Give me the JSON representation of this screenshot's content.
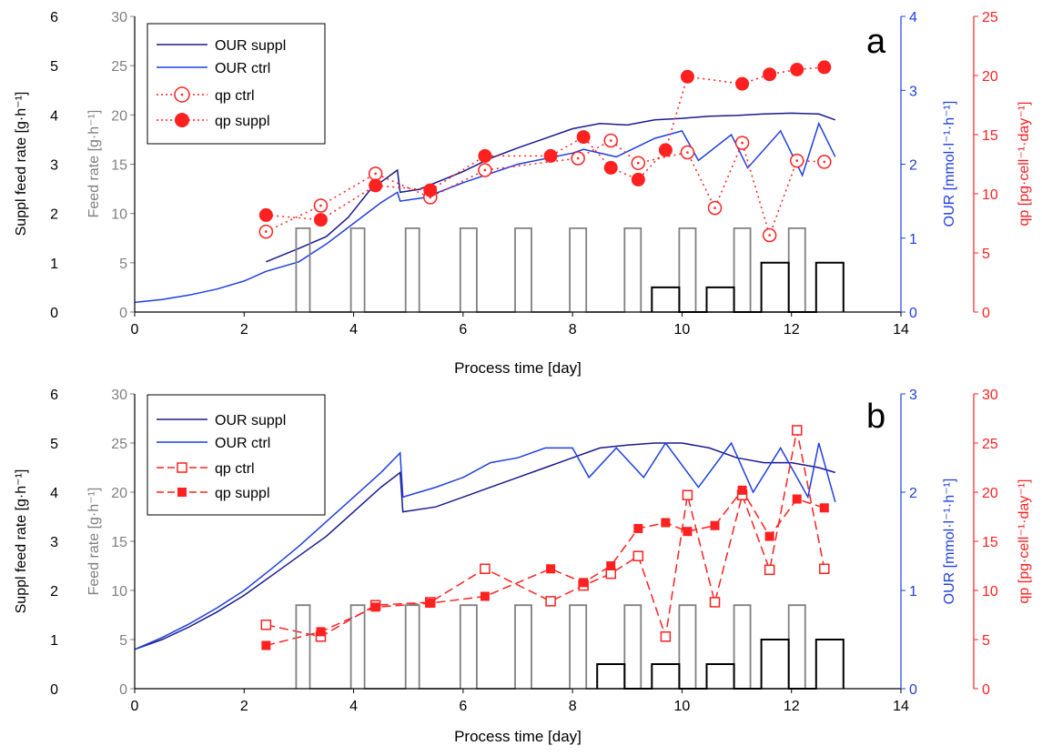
{
  "colors": {
    "our_suppl": "#1a1a8c",
    "our_ctrl": "#1f3fe0",
    "qp": "#ff2020",
    "feed_gray": "#808080",
    "suppl_black": "#000000",
    "axis_blue": "#1f3fe0",
    "axis_red": "#ff2020"
  },
  "chart_data": [
    {
      "type": "line",
      "panel_label": "a",
      "xlabel": "Process time [day]",
      "xlim": [
        0,
        14
      ],
      "x_ticks": [
        "0",
        "2",
        "4",
        "6",
        "8",
        "10",
        "12",
        "14"
      ],
      "axes": {
        "suppl": {
          "label": "Suppl feed rate [g·h⁻¹]",
          "lim": [
            0,
            6
          ],
          "ticks": [
            "0",
            "1",
            "2",
            "3",
            "4",
            "5",
            "6"
          ]
        },
        "feed": {
          "label": "Feed rate [g·h⁻¹]",
          "lim": [
            0,
            30
          ],
          "ticks": [
            "0",
            "5",
            "10",
            "15",
            "20",
            "25",
            "30"
          ]
        },
        "our": {
          "label": "OUR [mmol·l⁻¹·h⁻¹]",
          "lim": [
            0,
            4
          ],
          "ticks": [
            "0",
            "1",
            "2",
            "3",
            "4"
          ]
        },
        "qp": {
          "label": "qp [pg·cell⁻¹·day⁻¹]",
          "lim": [
            0,
            25
          ],
          "ticks": [
            "0",
            "5",
            "10",
            "15",
            "20",
            "25"
          ]
        }
      },
      "legend": {
        "placement": "top-left",
        "entries": [
          "OUR suppl",
          "OUR ctrl",
          "qp ctrl",
          "qp suppl"
        ]
      },
      "series": [
        {
          "name": "OUR suppl",
          "axis": "our",
          "style": "line",
          "x": [
            2.4,
            3.0,
            3.5,
            3.9,
            4.3,
            4.8,
            4.85,
            5.2,
            6.0,
            6.5,
            7.0,
            7.5,
            8.0,
            8.5,
            9.0,
            9.5,
            10.0,
            10.5,
            11.0,
            11.5,
            12.0,
            12.5,
            12.8
          ],
          "y": [
            0.68,
            0.86,
            1.02,
            1.28,
            1.65,
            1.92,
            1.62,
            1.66,
            1.9,
            2.08,
            2.22,
            2.35,
            2.48,
            2.55,
            2.53,
            2.6,
            2.62,
            2.65,
            2.66,
            2.68,
            2.69,
            2.68,
            2.6
          ]
        },
        {
          "name": "OUR ctrl",
          "axis": "our",
          "style": "line",
          "x": [
            0,
            0.5,
            1.0,
            1.5,
            2.0,
            2.4,
            3.0,
            3.5,
            4.0,
            4.5,
            4.8,
            4.85,
            5.3,
            6.0,
            7.0,
            8.0,
            8.2,
            8.8,
            9.5,
            10.0,
            10.3,
            10.9,
            11.2,
            11.8,
            12.2,
            12.5,
            12.8
          ],
          "y": [
            0.13,
            0.17,
            0.23,
            0.31,
            0.42,
            0.55,
            0.68,
            0.92,
            1.2,
            1.48,
            1.62,
            1.5,
            1.55,
            1.75,
            2.0,
            2.15,
            2.2,
            2.1,
            2.35,
            2.45,
            2.05,
            2.4,
            1.95,
            2.45,
            1.85,
            2.55,
            2.1
          ]
        },
        {
          "name": "qp ctrl",
          "axis": "qp",
          "style": "dotted-open-circle",
          "x": [
            2.4,
            3.4,
            4.4,
            5.4,
            6.4,
            8.1,
            8.7,
            9.2,
            10.1,
            10.6,
            11.1,
            11.6,
            12.1,
            12.6
          ],
          "y": [
            6.8,
            9.0,
            11.7,
            9.7,
            12.0,
            13.0,
            14.5,
            12.6,
            13.5,
            8.8,
            14.3,
            6.5,
            12.8,
            12.7
          ]
        },
        {
          "name": "qp suppl",
          "axis": "qp",
          "style": "dotted-filled-circle",
          "x": [
            2.4,
            3.4,
            4.4,
            5.4,
            6.4,
            7.6,
            8.2,
            8.7,
            9.2,
            9.7,
            10.1,
            11.1,
            11.6,
            12.1,
            12.6
          ],
          "y": [
            8.2,
            7.8,
            10.7,
            10.3,
            13.2,
            13.2,
            14.8,
            12.2,
            11.2,
            13.7,
            19.9,
            19.3,
            20.1,
            20.5,
            20.7
          ]
        },
        {
          "name": "Feed rate",
          "axis": "feed",
          "style": "step-gray",
          "x": [
            2.95,
            2.95,
            3.2,
            3.2,
            3.95,
            3.95,
            4.2,
            4.2,
            4.95,
            4.95,
            5.2,
            5.2,
            5.95,
            5.95,
            6.25,
            6.25,
            6.95,
            6.95,
            7.25,
            7.25,
            7.95,
            7.95,
            8.25,
            8.25,
            8.95,
            8.95,
            9.25,
            9.25,
            9.95,
            9.95,
            10.25,
            10.25,
            10.95,
            10.95,
            11.25,
            11.25,
            11.95,
            11.95,
            12.25,
            12.25
          ],
          "y": [
            0,
            8.5,
            8.5,
            0,
            0,
            8.5,
            8.5,
            0,
            0,
            8.5,
            8.5,
            0,
            0,
            8.5,
            8.5,
            0,
            0,
            8.5,
            8.5,
            0,
            0,
            8.5,
            8.5,
            0,
            0,
            8.5,
            8.5,
            0,
            0,
            8.5,
            8.5,
            0,
            0,
            8.5,
            8.5,
            0,
            0,
            8.5,
            8.5,
            0
          ]
        },
        {
          "name": "Suppl feed rate",
          "axis": "suppl",
          "style": "step-black",
          "x": [
            9.45,
            9.45,
            9.95,
            9.95,
            10.45,
            10.45,
            10.95,
            10.95,
            11.45,
            11.45,
            11.95,
            11.95,
            12.45,
            12.45,
            12.95,
            12.95
          ],
          "y": [
            0,
            0.5,
            0.5,
            0,
            0,
            0.5,
            0.5,
            0,
            0,
            1.0,
            1.0,
            0,
            0,
            1.0,
            1.0,
            0
          ]
        }
      ]
    },
    {
      "type": "line",
      "panel_label": "b",
      "xlabel": "Process time [day]",
      "xlim": [
        0,
        14
      ],
      "x_ticks": [
        "0",
        "2",
        "4",
        "6",
        "8",
        "10",
        "12",
        "14"
      ],
      "axes": {
        "suppl": {
          "label": "Suppl feed rate [g·h⁻¹]",
          "lim": [
            0,
            6
          ],
          "ticks": [
            "0",
            "1",
            "2",
            "3",
            "4",
            "5",
            "6"
          ]
        },
        "feed": {
          "label": "Feed rate [g·h⁻¹]",
          "lim": [
            0,
            30
          ],
          "ticks": [
            "0",
            "5",
            "10",
            "15",
            "20",
            "25",
            "30"
          ]
        },
        "our": {
          "label": "OUR [mmol·l⁻¹·h⁻¹]",
          "lim": [
            0,
            3
          ],
          "ticks": [
            "0",
            "1",
            "2",
            "3"
          ]
        },
        "qp": {
          "label": "qp [pg·cell⁻¹·day⁻¹]",
          "lim": [
            0,
            30
          ],
          "ticks": [
            "0",
            "5",
            "10",
            "15",
            "20",
            "25",
            "30"
          ]
        }
      },
      "legend": {
        "placement": "top-left",
        "entries": [
          "OUR suppl",
          "OUR ctrl",
          "qp ctrl",
          "qp suppl"
        ]
      },
      "series": [
        {
          "name": "OUR suppl",
          "axis": "our",
          "style": "line",
          "x": [
            0,
            0.5,
            1.0,
            1.5,
            2.0,
            2.5,
            3.0,
            3.5,
            4.0,
            4.5,
            4.85,
            4.9,
            5.5,
            6.0,
            6.5,
            7.0,
            7.5,
            8.0,
            8.5,
            9.0,
            9.5,
            10.0,
            10.5,
            11.0,
            11.5,
            12.0,
            12.5,
            12.8
          ],
          "y": [
            0.4,
            0.5,
            0.63,
            0.78,
            0.95,
            1.15,
            1.35,
            1.55,
            1.8,
            2.05,
            2.2,
            1.8,
            1.85,
            1.95,
            2.05,
            2.15,
            2.25,
            2.35,
            2.45,
            2.48,
            2.5,
            2.5,
            2.45,
            2.35,
            2.3,
            2.3,
            2.25,
            2.2
          ]
        },
        {
          "name": "OUR ctrl",
          "axis": "our",
          "style": "line",
          "x": [
            0,
            0.5,
            1.0,
            1.5,
            2.0,
            2.5,
            3.0,
            3.5,
            4.0,
            4.5,
            4.85,
            4.9,
            5.5,
            6.0,
            6.5,
            7.0,
            7.5,
            8.0,
            8.3,
            8.8,
            9.3,
            9.7,
            10.3,
            10.9,
            11.3,
            11.8,
            12.3,
            12.5,
            12.8
          ],
          "y": [
            0.4,
            0.52,
            0.66,
            0.82,
            1.0,
            1.22,
            1.45,
            1.7,
            1.95,
            2.2,
            2.4,
            1.95,
            2.05,
            2.15,
            2.3,
            2.35,
            2.45,
            2.45,
            2.15,
            2.45,
            2.15,
            2.5,
            2.05,
            2.5,
            2.0,
            2.45,
            1.95,
            2.5,
            1.9
          ]
        },
        {
          "name": "qp ctrl",
          "axis": "qp",
          "style": "dashed-open-square",
          "x": [
            2.4,
            3.4,
            4.4,
            5.4,
            6.4,
            7.6,
            8.2,
            8.7,
            9.2,
            9.7,
            10.1,
            10.6,
            11.1,
            11.6,
            12.1,
            12.6
          ],
          "y": [
            6.5,
            5.3,
            8.5,
            8.8,
            12.2,
            8.9,
            10.5,
            11.7,
            13.5,
            5.3,
            19.7,
            8.8,
            19.7,
            12.1,
            26.3,
            12.2
          ]
        },
        {
          "name": "qp suppl",
          "axis": "qp",
          "style": "dashed-filled-square",
          "x": [
            2.4,
            3.4,
            4.4,
            5.4,
            6.4,
            7.6,
            8.2,
            8.7,
            9.2,
            9.7,
            10.1,
            10.6,
            11.1,
            11.6,
            12.1,
            12.6
          ],
          "y": [
            4.4,
            5.8,
            8.3,
            8.7,
            9.4,
            12.2,
            10.8,
            12.5,
            16.3,
            16.9,
            16.0,
            16.6,
            20.2,
            15.5,
            19.3,
            18.4
          ]
        },
        {
          "name": "Feed rate",
          "axis": "feed",
          "style": "step-gray",
          "x": [
            2.95,
            2.95,
            3.2,
            3.2,
            3.95,
            3.95,
            4.2,
            4.2,
            4.95,
            4.95,
            5.2,
            5.2,
            5.95,
            5.95,
            6.25,
            6.25,
            6.95,
            6.95,
            7.25,
            7.25,
            7.95,
            7.95,
            8.25,
            8.25,
            8.95,
            8.95,
            9.25,
            9.25,
            9.95,
            9.95,
            10.25,
            10.25,
            10.95,
            10.95,
            11.25,
            11.25,
            11.95,
            11.95,
            12.25,
            12.25
          ],
          "y": [
            0,
            8.5,
            8.5,
            0,
            0,
            8.5,
            8.5,
            0,
            0,
            8.5,
            8.5,
            0,
            0,
            8.5,
            8.5,
            0,
            0,
            8.5,
            8.5,
            0,
            0,
            8.5,
            8.5,
            0,
            0,
            8.5,
            8.5,
            0,
            0,
            8.5,
            8.5,
            0,
            0,
            8.5,
            8.5,
            0,
            0,
            8.5,
            8.5,
            0
          ]
        },
        {
          "name": "Suppl feed rate",
          "axis": "suppl",
          "style": "step-black",
          "x": [
            8.45,
            8.45,
            8.95,
            8.95,
            9.45,
            9.45,
            9.95,
            9.95,
            10.45,
            10.45,
            10.95,
            10.95,
            11.45,
            11.45,
            11.95,
            11.95,
            12.45,
            12.45,
            12.95,
            12.95
          ],
          "y": [
            0,
            0.5,
            0.5,
            0,
            0,
            0.5,
            0.5,
            0,
            0,
            0.5,
            0.5,
            0,
            0,
            1.0,
            1.0,
            0,
            0,
            1.0,
            1.0,
            0
          ]
        }
      ]
    }
  ]
}
